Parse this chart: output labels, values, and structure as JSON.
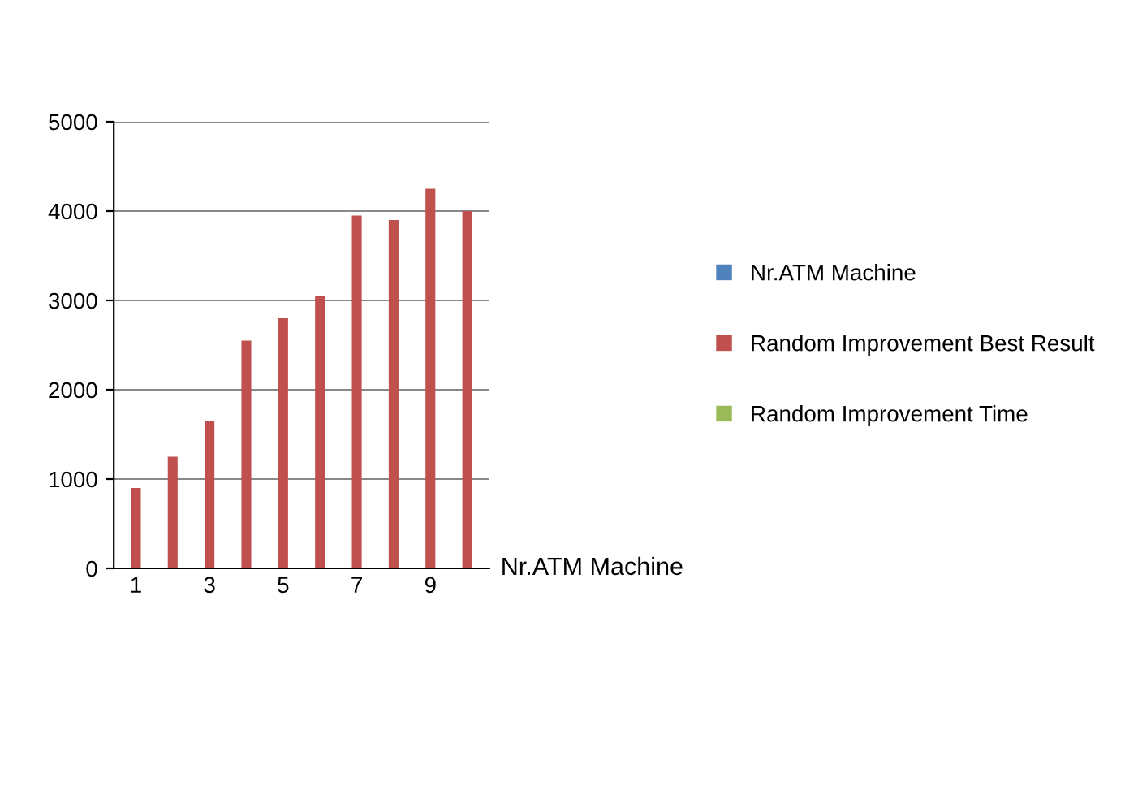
{
  "chart_data": {
    "type": "bar",
    "xlabel": "Nr.ATM Machine",
    "categories": [
      "1",
      null,
      "3",
      null,
      "5",
      null,
      "7",
      null,
      "9",
      null
    ],
    "series": [
      {
        "name": "Nr.ATM Machine",
        "color": "#4f81bd",
        "values": [
          0,
          0,
          0,
          0,
          0,
          0,
          0,
          0,
          0,
          0
        ]
      },
      {
        "name": "Random Improvement Best Result",
        "color": "#c0504d",
        "values": [
          900,
          1250,
          1650,
          2550,
          2800,
          3050,
          3950,
          3900,
          4250,
          4000
        ]
      },
      {
        "name": "Random Improvement Time",
        "color": "#9bbb59",
        "values": [
          null,
          null,
          null,
          null,
          null,
          null,
          null,
          null,
          null,
          null
        ]
      }
    ],
    "ylim": [
      0,
      5000
    ],
    "yticks": [
      0,
      1000,
      2000,
      3000,
      4000,
      5000
    ],
    "grid": "y",
    "legend": "right"
  }
}
